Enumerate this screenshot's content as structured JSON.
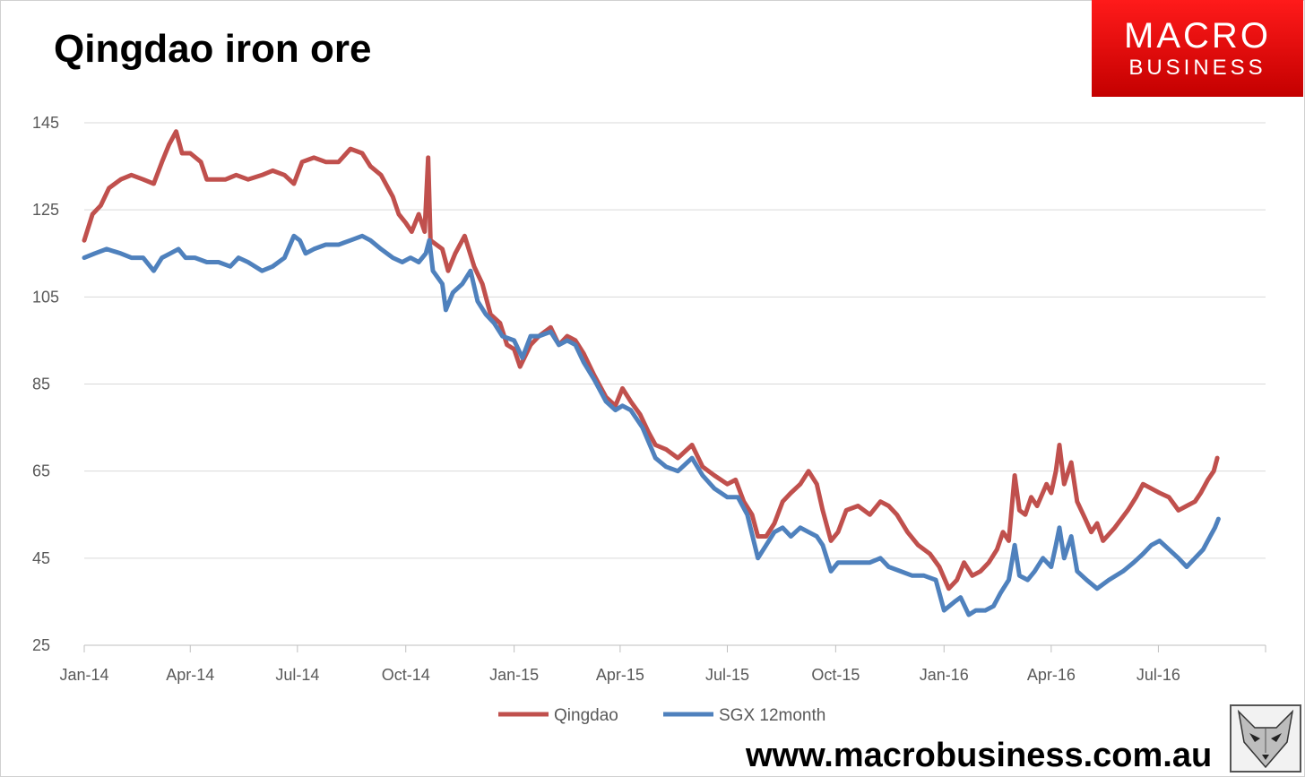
{
  "header": {
    "title": "Qingdao iron ore"
  },
  "logo": {
    "line1": "MACRO",
    "line2": "BUSINESS",
    "color": "#e60000"
  },
  "footer": {
    "url": "www.macrobusiness.com.au",
    "icon": "fox-icon"
  },
  "chart_data": {
    "type": "line",
    "title": "Qingdao iron ore",
    "xlabel": "",
    "ylabel": "",
    "ylim": [
      25,
      145
    ],
    "yticks": [
      25,
      45,
      65,
      85,
      105,
      125,
      145
    ],
    "xlim": [
      "2014-01-01",
      "2016-09-30"
    ],
    "x_tick_labels": [
      "Jan-14",
      "Apr-14",
      "Jul-14",
      "Oct-14",
      "Jan-15",
      "Apr-15",
      "Jul-15",
      "Oct-15",
      "Jan-16",
      "Apr-16",
      "Jul-16"
    ],
    "x_ticks": [
      "2014-01-01",
      "2014-04-01",
      "2014-07-01",
      "2014-10-01",
      "2015-01-01",
      "2015-04-01",
      "2015-07-01",
      "2015-10-01",
      "2016-01-01",
      "2016-04-01",
      "2016-07-01"
    ],
    "grid": true,
    "legend": "bottom",
    "series": [
      {
        "name": "Qingdao",
        "color": "#c0504d",
        "points": [
          [
            "2014-01-01",
            118
          ],
          [
            "2014-01-08",
            124
          ],
          [
            "2014-01-15",
            126
          ],
          [
            "2014-01-22",
            130
          ],
          [
            "2014-02-01",
            132
          ],
          [
            "2014-02-10",
            133
          ],
          [
            "2014-02-20",
            132
          ],
          [
            "2014-03-01",
            131
          ],
          [
            "2014-03-08",
            136
          ],
          [
            "2014-03-14",
            140
          ],
          [
            "2014-03-20",
            143
          ],
          [
            "2014-03-25",
            138
          ],
          [
            "2014-04-01",
            138
          ],
          [
            "2014-04-10",
            136
          ],
          [
            "2014-04-15",
            132
          ],
          [
            "2014-05-01",
            132
          ],
          [
            "2014-05-10",
            133
          ],
          [
            "2014-05-20",
            132
          ],
          [
            "2014-06-01",
            133
          ],
          [
            "2014-06-10",
            134
          ],
          [
            "2014-06-20",
            133
          ],
          [
            "2014-06-28",
            131
          ],
          [
            "2014-07-05",
            136
          ],
          [
            "2014-07-15",
            137
          ],
          [
            "2014-07-25",
            136
          ],
          [
            "2014-08-05",
            136
          ],
          [
            "2014-08-15",
            139
          ],
          [
            "2014-08-25",
            138
          ],
          [
            "2014-09-01",
            135
          ],
          [
            "2014-09-10",
            133
          ],
          [
            "2014-09-20",
            128
          ],
          [
            "2014-09-25",
            124
          ],
          [
            "2014-10-01",
            122
          ],
          [
            "2014-10-06",
            120
          ],
          [
            "2014-10-12",
            124
          ],
          [
            "2014-10-17",
            120
          ],
          [
            "2014-10-20",
            137
          ],
          [
            "2014-10-22",
            118
          ],
          [
            "2014-11-01",
            116
          ],
          [
            "2014-11-06",
            111
          ],
          [
            "2014-11-12",
            115
          ],
          [
            "2014-11-20",
            119
          ],
          [
            "2014-11-28",
            112
          ],
          [
            "2014-12-05",
            108
          ],
          [
            "2014-12-12",
            101
          ],
          [
            "2014-12-20",
            99
          ],
          [
            "2014-12-26",
            94
          ],
          [
            "2015-01-01",
            93
          ],
          [
            "2015-01-06",
            89
          ],
          [
            "2015-01-15",
            94
          ],
          [
            "2015-01-22",
            96
          ],
          [
            "2015-02-01",
            98
          ],
          [
            "2015-02-08",
            94
          ],
          [
            "2015-02-15",
            96
          ],
          [
            "2015-02-22",
            95
          ],
          [
            "2015-03-01",
            92
          ],
          [
            "2015-03-10",
            87
          ],
          [
            "2015-03-20",
            82
          ],
          [
            "2015-03-28",
            80
          ],
          [
            "2015-04-03",
            84
          ],
          [
            "2015-04-10",
            81
          ],
          [
            "2015-04-18",
            78
          ],
          [
            "2015-04-25",
            74
          ],
          [
            "2015-05-01",
            71
          ],
          [
            "2015-05-10",
            70
          ],
          [
            "2015-05-20",
            68
          ],
          [
            "2015-06-01",
            71
          ],
          [
            "2015-06-10",
            66
          ],
          [
            "2015-06-20",
            64
          ],
          [
            "2015-07-01",
            62
          ],
          [
            "2015-07-08",
            63
          ],
          [
            "2015-07-15",
            58
          ],
          [
            "2015-07-22",
            55
          ],
          [
            "2015-07-27",
            50
          ],
          [
            "2015-08-03",
            50
          ],
          [
            "2015-08-10",
            53
          ],
          [
            "2015-08-17",
            58
          ],
          [
            "2015-08-24",
            60
          ],
          [
            "2015-09-01",
            62
          ],
          [
            "2015-09-08",
            65
          ],
          [
            "2015-09-15",
            62
          ],
          [
            "2015-09-20",
            56
          ],
          [
            "2015-09-27",
            49
          ],
          [
            "2015-10-03",
            51
          ],
          [
            "2015-10-10",
            56
          ],
          [
            "2015-10-20",
            57
          ],
          [
            "2015-10-30",
            55
          ],
          [
            "2015-11-08",
            58
          ],
          [
            "2015-11-15",
            57
          ],
          [
            "2015-11-22",
            55
          ],
          [
            "2015-12-01",
            51
          ],
          [
            "2015-12-10",
            48
          ],
          [
            "2015-12-20",
            46
          ],
          [
            "2015-12-28",
            43
          ],
          [
            "2016-01-05",
            38
          ],
          [
            "2016-01-12",
            40
          ],
          [
            "2016-01-18",
            44
          ],
          [
            "2016-01-25",
            41
          ],
          [
            "2016-02-01",
            42
          ],
          [
            "2016-02-08",
            44
          ],
          [
            "2016-02-15",
            47
          ],
          [
            "2016-02-20",
            51
          ],
          [
            "2016-02-25",
            49
          ],
          [
            "2016-03-01",
            64
          ],
          [
            "2016-03-05",
            56
          ],
          [
            "2016-03-10",
            55
          ],
          [
            "2016-03-15",
            59
          ],
          [
            "2016-03-20",
            57
          ],
          [
            "2016-03-28",
            62
          ],
          [
            "2016-04-01",
            60
          ],
          [
            "2016-04-05",
            65
          ],
          [
            "2016-04-08",
            71
          ],
          [
            "2016-04-12",
            62
          ],
          [
            "2016-04-18",
            67
          ],
          [
            "2016-04-23",
            58
          ],
          [
            "2016-04-30",
            54
          ],
          [
            "2016-05-05",
            51
          ],
          [
            "2016-05-10",
            53
          ],
          [
            "2016-05-15",
            49
          ],
          [
            "2016-05-25",
            52
          ],
          [
            "2016-06-05",
            56
          ],
          [
            "2016-06-12",
            59
          ],
          [
            "2016-06-18",
            62
          ],
          [
            "2016-06-25",
            61
          ],
          [
            "2016-07-02",
            60
          ],
          [
            "2016-07-10",
            59
          ],
          [
            "2016-07-18",
            56
          ],
          [
            "2016-07-25",
            57
          ],
          [
            "2016-08-01",
            58
          ],
          [
            "2016-08-06",
            60
          ],
          [
            "2016-08-12",
            63
          ],
          [
            "2016-08-17",
            65
          ],
          [
            "2016-08-20",
            68
          ]
        ]
      },
      {
        "name": "SGX 12month",
        "color": "#4f81bd",
        "points": [
          [
            "2014-01-01",
            114
          ],
          [
            "2014-01-10",
            115
          ],
          [
            "2014-01-20",
            116
          ],
          [
            "2014-02-01",
            115
          ],
          [
            "2014-02-10",
            114
          ],
          [
            "2014-02-20",
            114
          ],
          [
            "2014-03-01",
            111
          ],
          [
            "2014-03-08",
            114
          ],
          [
            "2014-03-15",
            115
          ],
          [
            "2014-03-22",
            116
          ],
          [
            "2014-03-28",
            114
          ],
          [
            "2014-04-05",
            114
          ],
          [
            "2014-04-15",
            113
          ],
          [
            "2014-04-25",
            113
          ],
          [
            "2014-05-05",
            112
          ],
          [
            "2014-05-12",
            114
          ],
          [
            "2014-05-20",
            113
          ],
          [
            "2014-06-01",
            111
          ],
          [
            "2014-06-10",
            112
          ],
          [
            "2014-06-20",
            114
          ],
          [
            "2014-06-28",
            119
          ],
          [
            "2014-07-03",
            118
          ],
          [
            "2014-07-08",
            115
          ],
          [
            "2014-07-15",
            116
          ],
          [
            "2014-07-25",
            117
          ],
          [
            "2014-08-05",
            117
          ],
          [
            "2014-08-15",
            118
          ],
          [
            "2014-08-25",
            119
          ],
          [
            "2014-09-01",
            118
          ],
          [
            "2014-09-10",
            116
          ],
          [
            "2014-09-20",
            114
          ],
          [
            "2014-09-28",
            113
          ],
          [
            "2014-10-05",
            114
          ],
          [
            "2014-10-12",
            113
          ],
          [
            "2014-10-18",
            115
          ],
          [
            "2014-10-21",
            118
          ],
          [
            "2014-10-24",
            111
          ],
          [
            "2014-11-01",
            108
          ],
          [
            "2014-11-04",
            102
          ],
          [
            "2014-11-10",
            106
          ],
          [
            "2014-11-18",
            108
          ],
          [
            "2014-11-25",
            111
          ],
          [
            "2014-12-01",
            104
          ],
          [
            "2014-12-08",
            101
          ],
          [
            "2014-12-15",
            99
          ],
          [
            "2014-12-22",
            96
          ],
          [
            "2015-01-01",
            95
          ],
          [
            "2015-01-08",
            91
          ],
          [
            "2015-01-15",
            96
          ],
          [
            "2015-01-22",
            96
          ],
          [
            "2015-02-01",
            97
          ],
          [
            "2015-02-08",
            94
          ],
          [
            "2015-02-15",
            95
          ],
          [
            "2015-02-22",
            94
          ],
          [
            "2015-03-01",
            90
          ],
          [
            "2015-03-10",
            86
          ],
          [
            "2015-03-20",
            81
          ],
          [
            "2015-03-28",
            79
          ],
          [
            "2015-04-03",
            80
          ],
          [
            "2015-04-10",
            79
          ],
          [
            "2015-04-20",
            75
          ],
          [
            "2015-05-01",
            68
          ],
          [
            "2015-05-10",
            66
          ],
          [
            "2015-05-20",
            65
          ],
          [
            "2015-06-01",
            68
          ],
          [
            "2015-06-10",
            64
          ],
          [
            "2015-06-20",
            61
          ],
          [
            "2015-07-01",
            59
          ],
          [
            "2015-07-10",
            59
          ],
          [
            "2015-07-18",
            55
          ],
          [
            "2015-07-27",
            45
          ],
          [
            "2015-08-03",
            48
          ],
          [
            "2015-08-10",
            51
          ],
          [
            "2015-08-17",
            52
          ],
          [
            "2015-08-24",
            50
          ],
          [
            "2015-09-01",
            52
          ],
          [
            "2015-09-08",
            51
          ],
          [
            "2015-09-15",
            50
          ],
          [
            "2015-09-20",
            48
          ],
          [
            "2015-09-27",
            42
          ],
          [
            "2015-10-03",
            44
          ],
          [
            "2015-10-15",
            44
          ],
          [
            "2015-10-30",
            44
          ],
          [
            "2015-11-08",
            45
          ],
          [
            "2015-11-15",
            43
          ],
          [
            "2015-11-25",
            42
          ],
          [
            "2015-12-05",
            41
          ],
          [
            "2015-12-15",
            41
          ],
          [
            "2015-12-25",
            40
          ],
          [
            "2016-01-01",
            33
          ],
          [
            "2016-01-10",
            35
          ],
          [
            "2016-01-15",
            36
          ],
          [
            "2016-01-22",
            32
          ],
          [
            "2016-01-28",
            33
          ],
          [
            "2016-02-05",
            33
          ],
          [
            "2016-02-12",
            34
          ],
          [
            "2016-02-18",
            37
          ],
          [
            "2016-02-25",
            40
          ],
          [
            "2016-03-01",
            48
          ],
          [
            "2016-03-05",
            41
          ],
          [
            "2016-03-12",
            40
          ],
          [
            "2016-03-18",
            42
          ],
          [
            "2016-03-25",
            45
          ],
          [
            "2016-04-01",
            43
          ],
          [
            "2016-04-05",
            48
          ],
          [
            "2016-04-08",
            52
          ],
          [
            "2016-04-12",
            45
          ],
          [
            "2016-04-18",
            50
          ],
          [
            "2016-04-23",
            42
          ],
          [
            "2016-05-01",
            40
          ],
          [
            "2016-05-10",
            38
          ],
          [
            "2016-05-20",
            40
          ],
          [
            "2016-06-01",
            42
          ],
          [
            "2016-06-10",
            44
          ],
          [
            "2016-06-18",
            46
          ],
          [
            "2016-06-25",
            48
          ],
          [
            "2016-07-02",
            49
          ],
          [
            "2016-07-10",
            47
          ],
          [
            "2016-07-18",
            45
          ],
          [
            "2016-07-25",
            43
          ],
          [
            "2016-08-01",
            45
          ],
          [
            "2016-08-08",
            47
          ],
          [
            "2016-08-14",
            50
          ],
          [
            "2016-08-18",
            52
          ],
          [
            "2016-08-21",
            54
          ]
        ]
      }
    ]
  }
}
